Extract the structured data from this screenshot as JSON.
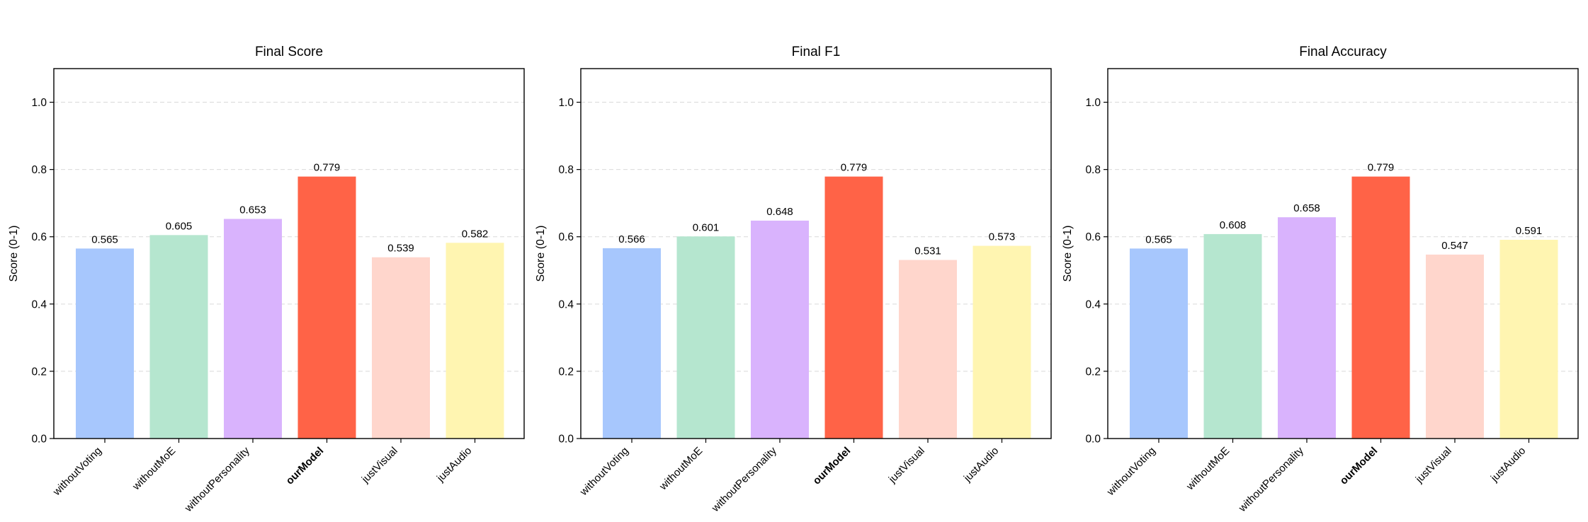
{
  "chart_data": [
    {
      "type": "bar",
      "title": "Final Score",
      "ylabel": "Score (0-1)",
      "ylim": [
        0,
        1.1
      ],
      "yticks": [
        "0.0",
        "0.2",
        "0.4",
        "0.6",
        "0.8",
        "1.0"
      ],
      "grid": "y-dashed",
      "highlight": "ourModel",
      "categories": [
        "withoutVoting",
        "withoutMoE",
        "withoutPersonality",
        "ourModel",
        "justVisual",
        "justAudio"
      ],
      "values": [
        0.565,
        0.605,
        0.653,
        0.779,
        0.539,
        0.582
      ],
      "labels": [
        "0.565",
        "0.605",
        "0.653",
        "0.779",
        "0.539",
        "0.582"
      ],
      "colors": [
        "#a7c7fd",
        "#b5e6cf",
        "#d9b3fd",
        "#ff6347",
        "#ffd6cc",
        "#fff5b1"
      ]
    },
    {
      "type": "bar",
      "title": "Final F1",
      "ylabel": "Score (0-1)",
      "ylim": [
        0,
        1.1
      ],
      "yticks": [
        "0.0",
        "0.2",
        "0.4",
        "0.6",
        "0.8",
        "1.0"
      ],
      "grid": "y-dashed",
      "highlight": "ourModel",
      "categories": [
        "withoutVoting",
        "withoutMoE",
        "withoutPersonality",
        "ourModel",
        "justVisual",
        "justAudio"
      ],
      "values": [
        0.566,
        0.601,
        0.648,
        0.779,
        0.531,
        0.573
      ],
      "labels": [
        "0.566",
        "0.601",
        "0.648",
        "0.779",
        "0.531",
        "0.573"
      ],
      "colors": [
        "#a7c7fd",
        "#b5e6cf",
        "#d9b3fd",
        "#ff6347",
        "#ffd6cc",
        "#fff5b1"
      ]
    },
    {
      "type": "bar",
      "title": "Final Accuracy",
      "ylabel": "Score (0-1)",
      "ylim": [
        0,
        1.1
      ],
      "yticks": [
        "0.0",
        "0.2",
        "0.4",
        "0.6",
        "0.8",
        "1.0"
      ],
      "grid": "y-dashed",
      "highlight": "ourModel",
      "categories": [
        "withoutVoting",
        "withoutMoE",
        "withoutPersonality",
        "ourModel",
        "justVisual",
        "justAudio"
      ],
      "values": [
        0.565,
        0.608,
        0.658,
        0.779,
        0.547,
        0.591
      ],
      "labels": [
        "0.565",
        "0.608",
        "0.658",
        "0.779",
        "0.547",
        "0.591"
      ],
      "colors": [
        "#a7c7fd",
        "#b5e6cf",
        "#d9b3fd",
        "#ff6347",
        "#ffd6cc",
        "#fff5b1"
      ]
    }
  ]
}
